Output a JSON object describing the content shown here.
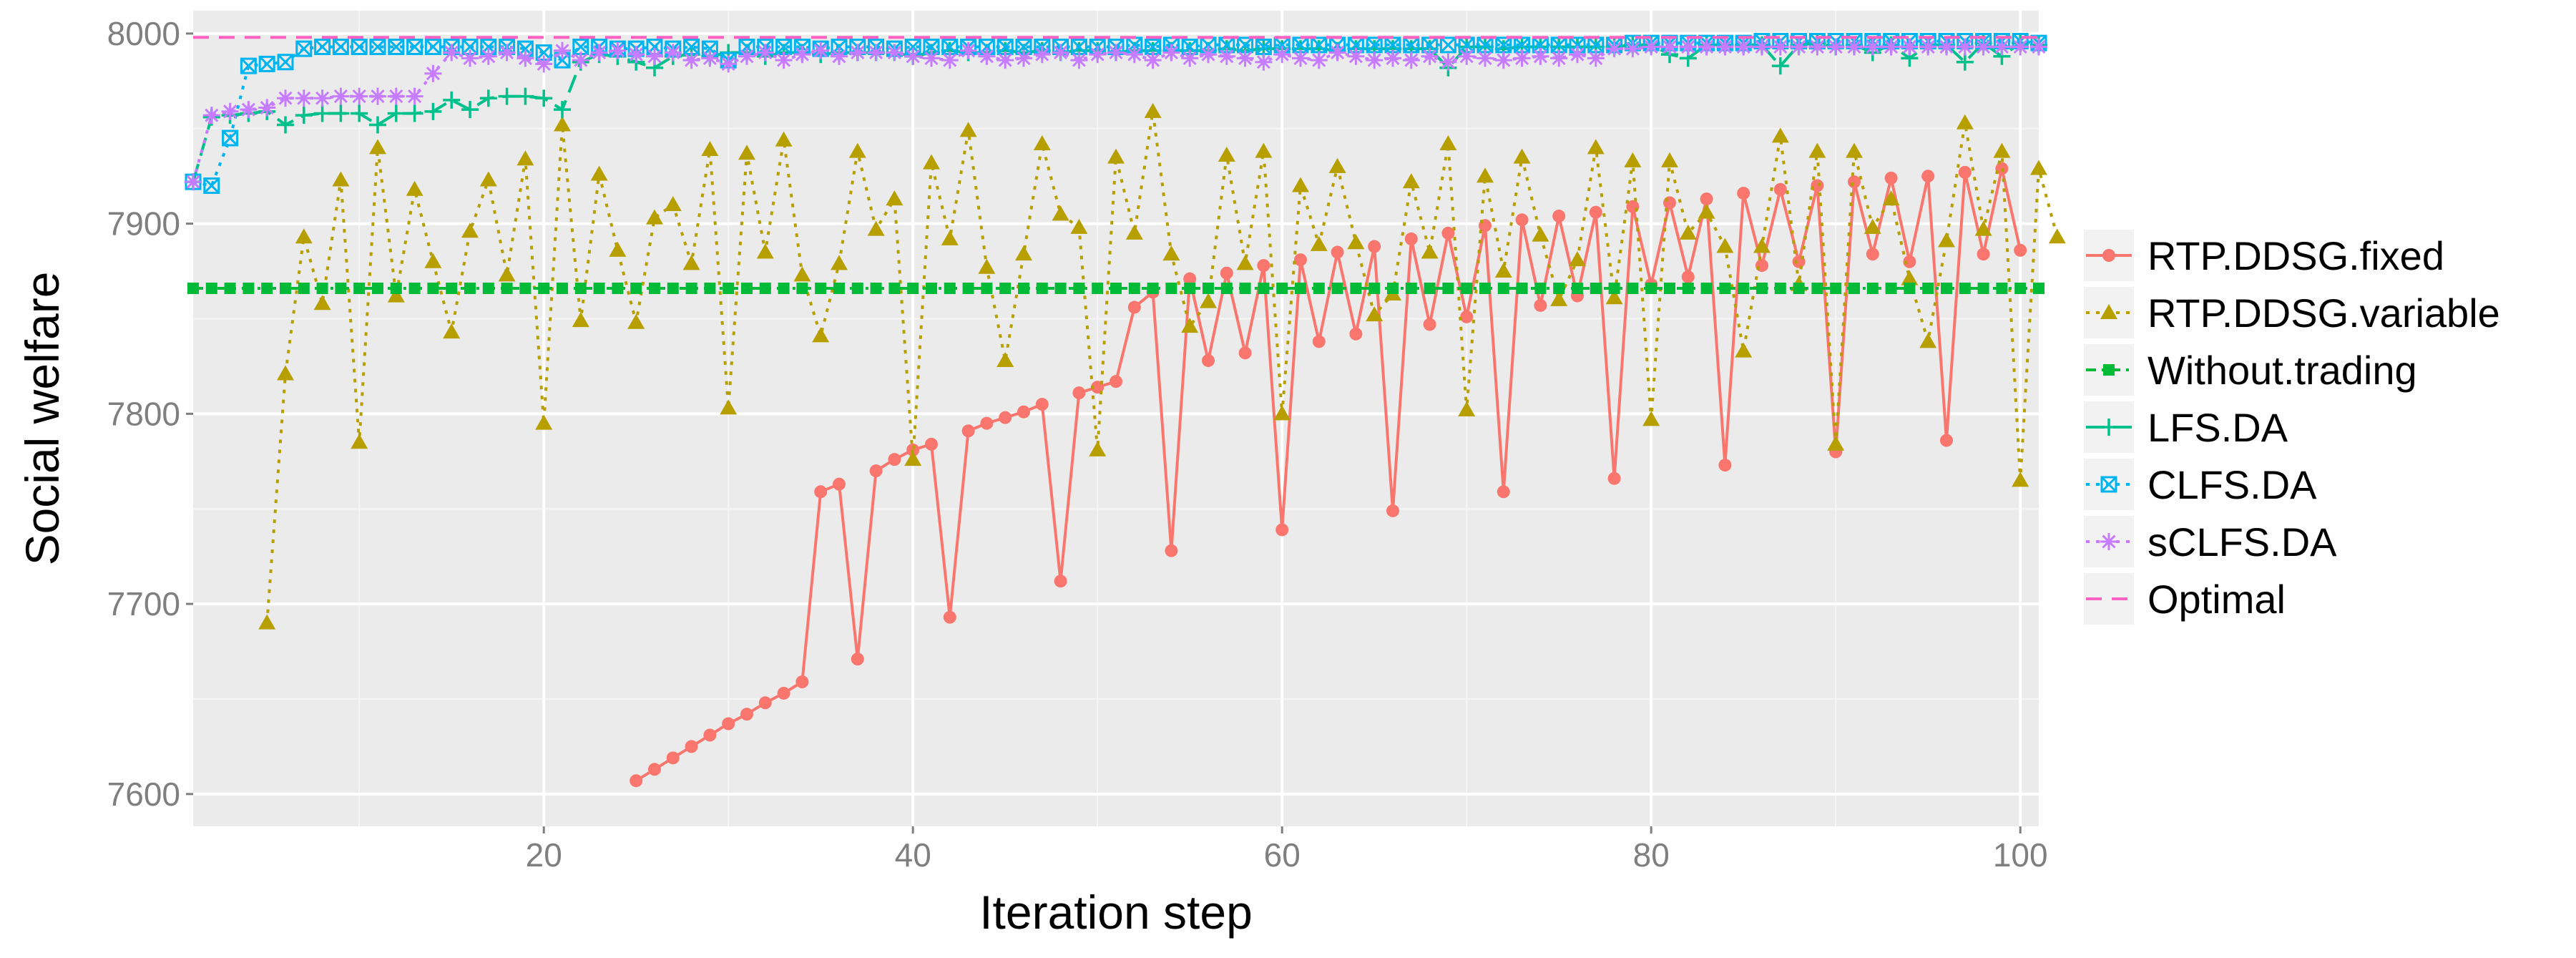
{
  "chart_data": {
    "type": "line",
    "title": "",
    "xlabel": "Iteration step",
    "ylabel": "Social welfare",
    "xlim": [
      1,
      101
    ],
    "ylim": [
      7583,
      8012
    ],
    "x_ticks": [
      20,
      40,
      60,
      80,
      100
    ],
    "x_tick_labels": [
      "20",
      "40",
      "60",
      "80",
      "100"
    ],
    "y_ticks": [
      7600,
      7700,
      7800,
      7900,
      8000
    ],
    "y_tick_labels": [
      "7600",
      "7700",
      "7800",
      "7900",
      "8000"
    ],
    "grid": true,
    "legend_position": "right",
    "series": [
      {
        "name": "RTP.DDSG.fixed",
        "color": "#F8766D",
        "marker": "circle",
        "dash": "solid",
        "start_x": 25,
        "values": [
          7607,
          7613,
          7619,
          7625,
          7631,
          7637,
          7642,
          7648,
          7653,
          7659,
          7759,
          7763,
          7671,
          7770,
          7776,
          7781,
          7784,
          7693,
          7791,
          7795,
          7798,
          7801,
          7805,
          7712,
          7811,
          7814,
          7817,
          7856,
          7864,
          7728,
          7871,
          7828,
          7874,
          7832,
          7878,
          7739,
          7881,
          7838,
          7885,
          7842,
          7888,
          7749,
          7892,
          7847,
          7895,
          7851,
          7899,
          7759,
          7902,
          7857,
          7904,
          7862,
          7906,
          7766,
          7909,
          7868,
          7911,
          7872,
          7913,
          7773,
          7916,
          7878,
          7918,
          7880,
          7920,
          7780,
          7922,
          7884,
          7924,
          7880,
          7925,
          7786,
          7927,
          7884,
          7929,
          7886
        ]
      },
      {
        "name": "RTP.DDSG.variable",
        "color": "#B79F00",
        "marker": "triangle",
        "dash": "dotted",
        "start_x": 5,
        "values": [
          7690,
          7821,
          7893,
          7858,
          7923,
          7785,
          7940,
          7862,
          7918,
          7880,
          7843,
          7896,
          7923,
          7873,
          7934,
          7795,
          7952,
          7849,
          7926,
          7886,
          7848,
          7903,
          7910,
          7879,
          7939,
          7803,
          7937,
          7885,
          7944,
          7873,
          7841,
          7879,
          7938,
          7897,
          7913,
          7776,
          7932,
          7892,
          7949,
          7877,
          7828,
          7884,
          7942,
          7905,
          7898,
          7781,
          7935,
          7895,
          7959,
          7884,
          7846,
          7859,
          7936,
          7879,
          7938,
          7800,
          7920,
          7889,
          7930,
          7890,
          7852,
          7863,
          7922,
          7885,
          7942,
          7802,
          7925,
          7875,
          7935,
          7894,
          7860,
          7881,
          7940,
          7861,
          7933,
          7797,
          7933,
          7895,
          7906,
          7888,
          7833,
          7888,
          7946,
          7868,
          7938,
          7784,
          7938,
          7898,
          7913,
          7871,
          7838,
          7891,
          7953,
          7897,
          7938,
          7765,
          7929,
          7893
        ]
      },
      {
        "name": "Without.trading",
        "color": "#00BA38",
        "marker": "square",
        "dash": "dashdot",
        "start_x": 1,
        "values": [
          7866,
          7866,
          7866,
          7866,
          7866,
          7866,
          7866,
          7866,
          7866,
          7866,
          7866,
          7866,
          7866,
          7866,
          7866,
          7866,
          7866,
          7866,
          7866,
          7866,
          7866,
          7866,
          7866,
          7866,
          7866,
          7866,
          7866,
          7866,
          7866,
          7866,
          7866,
          7866,
          7866,
          7866,
          7866,
          7866,
          7866,
          7866,
          7866,
          7866,
          7866,
          7866,
          7866,
          7866,
          7866,
          7866,
          7866,
          7866,
          7866,
          7866,
          7866,
          7866,
          7866,
          7866,
          7866,
          7866,
          7866,
          7866,
          7866,
          7866,
          7866,
          7866,
          7866,
          7866,
          7866,
          7866,
          7866,
          7866,
          7866,
          7866,
          7866,
          7866,
          7866,
          7866,
          7866,
          7866,
          7866,
          7866,
          7866,
          7866,
          7866,
          7866,
          7866,
          7866,
          7866,
          7866,
          7866,
          7866,
          7866,
          7866,
          7866,
          7866,
          7866,
          7866,
          7866,
          7866,
          7866,
          7866,
          7866,
          7866,
          7866
        ]
      },
      {
        "name": "LFS.DA",
        "color": "#00C08B",
        "marker": "plus",
        "dash": "longdash",
        "start_x": 1,
        "values": [
          7922,
          7956,
          7957,
          7958,
          7959,
          7952,
          7957,
          7958,
          7958,
          7958,
          7952,
          7958,
          7958,
          7959,
          7965,
          7960,
          7966,
          7967,
          7967,
          7966,
          7960,
          7985,
          7989,
          7988,
          7985,
          7982,
          7988,
          7989,
          7988,
          7990,
          7990,
          7988,
          7990,
          7990,
          7989,
          7990,
          7990,
          7990,
          7990,
          7988,
          7990,
          7991,
          7990,
          7990,
          7991,
          7990,
          7991,
          7990,
          7991,
          7991,
          7990,
          7991,
          7991,
          7991,
          7991,
          7991,
          7992,
          7991,
          7992,
          7992,
          7992,
          7992,
          7991,
          7992,
          7992,
          7992,
          7992,
          7992,
          7982,
          7993,
          7993,
          7992,
          7993,
          7993,
          7993,
          7993,
          7993,
          7993,
          7994,
          7994,
          7989,
          7987,
          7994,
          7994,
          7994,
          7994,
          7983,
          7994,
          7995,
          7993,
          7994,
          7990,
          7994,
          7987,
          7994,
          7994,
          7985,
          7995,
          7988,
          7995,
          7994
        ]
      },
      {
        "name": "CLFS.DA",
        "color": "#00B4F0",
        "marker": "square-x",
        "dash": "dotted",
        "start_x": 1,
        "values": [
          7922,
          7920,
          7945,
          7983,
          7984,
          7985,
          7992,
          7993,
          7993,
          7993,
          7993,
          7993,
          7993,
          7993,
          7993,
          7993,
          7993,
          7993,
          7992,
          7990,
          7986,
          7993,
          7993,
          7992,
          7992,
          7993,
          7992,
          7993,
          7992,
          7986,
          7993,
          7993,
          7993,
          7993,
          7992,
          7993,
          7993,
          7993,
          7992,
          7993,
          7993,
          7993,
          7993,
          7993,
          7993,
          7993,
          7993,
          7993,
          7993,
          7993,
          7993,
          7994,
          7993,
          7994,
          7993,
          7994,
          7994,
          7994,
          7993,
          7994,
          7994,
          7994,
          7994,
          7994,
          7994,
          7994,
          7994,
          7994,
          7994,
          7994,
          7994,
          7994,
          7994,
          7994,
          7994,
          7994,
          7994,
          7994,
          7995,
          7995,
          7995,
          7995,
          7995,
          7995,
          7995,
          7996,
          7996,
          7996,
          7996,
          7996,
          7996,
          7996,
          7996,
          7996,
          7996,
          7996,
          7996,
          7996,
          7996,
          7996,
          7995
        ]
      },
      {
        "name": "sCLFS.DA",
        "color": "#C77CFF",
        "marker": "asterisk",
        "dash": "dotted",
        "start_x": 1,
        "values": [
          7922,
          7957,
          7959,
          7960,
          7961,
          7966,
          7966,
          7966,
          7967,
          7967,
          7967,
          7967,
          7967,
          7979,
          7990,
          7987,
          7988,
          7990,
          7987,
          7984,
          7991,
          7986,
          7990,
          7991,
          7989,
          7988,
          7990,
          7986,
          7987,
          7984,
          7988,
          7990,
          7986,
          7989,
          7991,
          7988,
          7990,
          7990,
          7990,
          7988,
          7987,
          7986,
          7991,
          7988,
          7986,
          7987,
          7989,
          7990,
          7986,
          7989,
          7990,
          7989,
          7986,
          7990,
          7987,
          7989,
          7988,
          7987,
          7985,
          7989,
          7987,
          7986,
          7990,
          7988,
          7986,
          7987,
          7986,
          7988,
          7985,
          7988,
          7987,
          7986,
          7987,
          7988,
          7987,
          7989,
          7987,
          7992,
          7992,
          7993,
          7993,
          7993,
          7993,
          7993,
          7993,
          7993,
          7993,
          7993,
          7993,
          7993,
          7993,
          7993,
          7993,
          7993,
          7993,
          7993,
          7993,
          7993,
          7993,
          7993,
          7993
        ]
      },
      {
        "name": "Optimal",
        "color": "#FF61C3",
        "marker": "none",
        "dash": "dashed",
        "start_x": 1,
        "values": [
          7998,
          7998,
          7998,
          7998,
          7998,
          7998,
          7998,
          7998,
          7998,
          7998,
          7998,
          7998,
          7998,
          7998,
          7998,
          7998,
          7998,
          7998,
          7998,
          7998,
          7998,
          7998,
          7998,
          7998,
          7998,
          7998,
          7998,
          7998,
          7998,
          7998,
          7998,
          7998,
          7998,
          7998,
          7998,
          7998,
          7998,
          7998,
          7998,
          7998,
          7998,
          7998,
          7998,
          7998,
          7998,
          7998,
          7998,
          7998,
          7998,
          7998,
          7998,
          7998,
          7998,
          7998,
          7998,
          7998,
          7998,
          7998,
          7998,
          7998,
          7998,
          7998,
          7998,
          7998,
          7998,
          7998,
          7998,
          7998,
          7998,
          7998,
          7998,
          7998,
          7998,
          7998,
          7998,
          7998,
          7998,
          7998,
          7998,
          7998,
          7998,
          7998,
          7998,
          7998,
          7998,
          7998,
          7998,
          7998,
          7998,
          7998,
          7998,
          7998,
          7998,
          7998,
          7998,
          7998,
          7998,
          7998,
          7998,
          7998,
          7998
        ]
      }
    ]
  }
}
